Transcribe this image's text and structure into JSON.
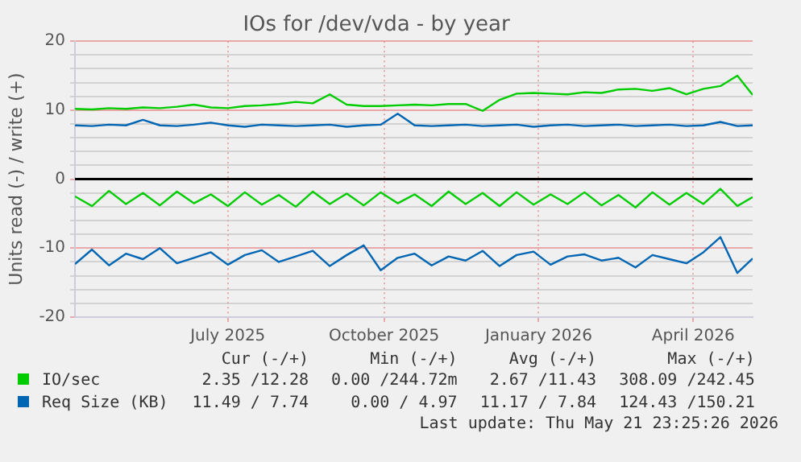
{
  "chart_data": {
    "type": "line",
    "title": "IOs for /dev/vda - by year",
    "ylabel": "Units read (-) / write (+)",
    "x": [
      "2025-04-17",
      "2025-04-27",
      "2025-05-07",
      "2025-05-17",
      "2025-05-27",
      "2025-06-06",
      "2025-06-16",
      "2025-06-26",
      "2025-07-06",
      "2025-07-16",
      "2025-07-26",
      "2025-08-05",
      "2025-08-15",
      "2025-08-25",
      "2025-09-04",
      "2025-09-14",
      "2025-09-24",
      "2025-10-04",
      "2025-10-14",
      "2025-10-24",
      "2025-11-03",
      "2025-11-13",
      "2025-11-23",
      "2025-12-03",
      "2025-12-13",
      "2025-12-23",
      "2026-01-02",
      "2026-01-12",
      "2026-01-22",
      "2026-02-01",
      "2026-02-11",
      "2026-02-21",
      "2026-03-03",
      "2026-03-13",
      "2026-03-23",
      "2026-04-02",
      "2026-04-12",
      "2026-04-22",
      "2026-05-02",
      "2026-05-12",
      "2026-05-21"
    ],
    "xlim": [
      "2025-04-17",
      "2026-05-21"
    ],
    "xticks": [
      {
        "value": "2025-07-16",
        "label": "July 2025"
      },
      {
        "value": "2025-10-16",
        "label": "October 2025"
      },
      {
        "value": "2026-01-15",
        "label": "January 2026"
      },
      {
        "value": "2026-04-16",
        "label": "April 2026"
      }
    ],
    "ylim": [
      -20,
      20
    ],
    "yticks": [
      -20,
      {
        "value": -18,
        "label": null
      },
      {
        "value": -16,
        "label": null
      },
      {
        "value": -14,
        "label": null
      },
      {
        "value": -12,
        "label": null
      },
      -10,
      {
        "value": -8,
        "label": null
      },
      {
        "value": -6,
        "label": null
      },
      {
        "value": -4,
        "label": null
      },
      {
        "value": -2,
        "label": null
      },
      0,
      {
        "value": 2,
        "label": null
      },
      {
        "value": 4,
        "label": null
      },
      {
        "value": 6,
        "label": null
      },
      {
        "value": 8,
        "label": null
      },
      10,
      {
        "value": 12,
        "label": null
      },
      {
        "value": 14,
        "label": null
      },
      {
        "value": 16,
        "label": null
      },
      {
        "value": 18,
        "label": null
      },
      20
    ],
    "grid": true,
    "legend": "bottom left",
    "marker": "none",
    "line_style": "solid",
    "ref_lines": [
      {
        "axis": "y",
        "value": 0,
        "color": "#000000"
      }
    ],
    "series": [
      {
        "name": "IO/sec",
        "color": "#00cc00",
        "values": [
          10.2,
          10.1,
          10.3,
          10.2,
          10.4,
          10.3,
          10.5,
          10.8,
          10.4,
          10.3,
          10.6,
          10.7,
          10.9,
          11.2,
          11.0,
          12.3,
          10.8,
          10.6,
          10.6,
          10.7,
          10.8,
          10.7,
          10.9,
          10.9,
          9.9,
          11.5,
          12.4,
          12.5,
          12.4,
          12.3,
          12.6,
          12.5,
          13.0,
          13.1,
          12.8,
          13.2,
          12.3,
          13.1,
          13.5,
          15.0,
          12.2
        ]
      },
      {
        "color": "#00cc00",
        "values": [
          -2.5,
          -3.9,
          -1.7,
          -3.6,
          -2.0,
          -3.8,
          -1.8,
          -3.5,
          -2.2,
          -3.9,
          -1.9,
          -3.7,
          -2.3,
          -4.0,
          -1.8,
          -3.6,
          -2.1,
          -3.8,
          -1.9,
          -3.5,
          -2.2,
          -3.9,
          -1.8,
          -3.6,
          -2.0,
          -3.9,
          -1.9,
          -3.7,
          -2.2,
          -3.6,
          -1.9,
          -3.8,
          -2.3,
          -4.1,
          -1.9,
          -3.7,
          -2.0,
          -3.6,
          -1.4,
          -3.9,
          -2.6
        ]
      },
      {
        "name": "Req Size (KB)",
        "color": "#0066b3",
        "values": [
          7.8,
          7.7,
          7.9,
          7.8,
          8.6,
          7.8,
          7.7,
          7.9,
          8.2,
          7.8,
          7.6,
          7.9,
          7.8,
          7.7,
          7.8,
          7.9,
          7.6,
          7.8,
          7.9,
          9.5,
          7.8,
          7.7,
          7.8,
          7.9,
          7.7,
          7.8,
          7.9,
          7.6,
          7.8,
          7.9,
          7.7,
          7.8,
          7.9,
          7.7,
          7.8,
          7.9,
          7.7,
          7.8,
          8.3,
          7.7,
          7.8
        ]
      },
      {
        "color": "#0066b3",
        "values": [
          -12.3,
          -10.2,
          -12.5,
          -10.8,
          -11.6,
          -10.0,
          -12.2,
          -11.4,
          -10.6,
          -12.4,
          -11.0,
          -10.3,
          -12.0,
          -11.2,
          -10.4,
          -12.6,
          -11.0,
          -9.6,
          -13.2,
          -11.4,
          -10.8,
          -12.5,
          -11.2,
          -11.8,
          -10.4,
          -12.6,
          -11.0,
          -10.5,
          -12.4,
          -11.2,
          -10.9,
          -11.8,
          -11.4,
          -12.8,
          -11.0,
          -11.6,
          -12.2,
          -10.6,
          -8.4,
          -13.6,
          -11.5
        ]
      }
    ],
    "annotations": [
      "Cur (-/+)",
      "Min (-/+)",
      "Avg (-/+)",
      "Max (-/+)",
      "2.35 /12.28",
      "0.00 /244.72m",
      "2.67 /11.43",
      "308.09 /242.45",
      "11.49 / 7.74",
      "0.00 / 4.97",
      "11.17 / 7.84",
      "124.43 /150.21",
      "Last update: Thu May 21 23:25:26 2026"
    ]
  }
}
